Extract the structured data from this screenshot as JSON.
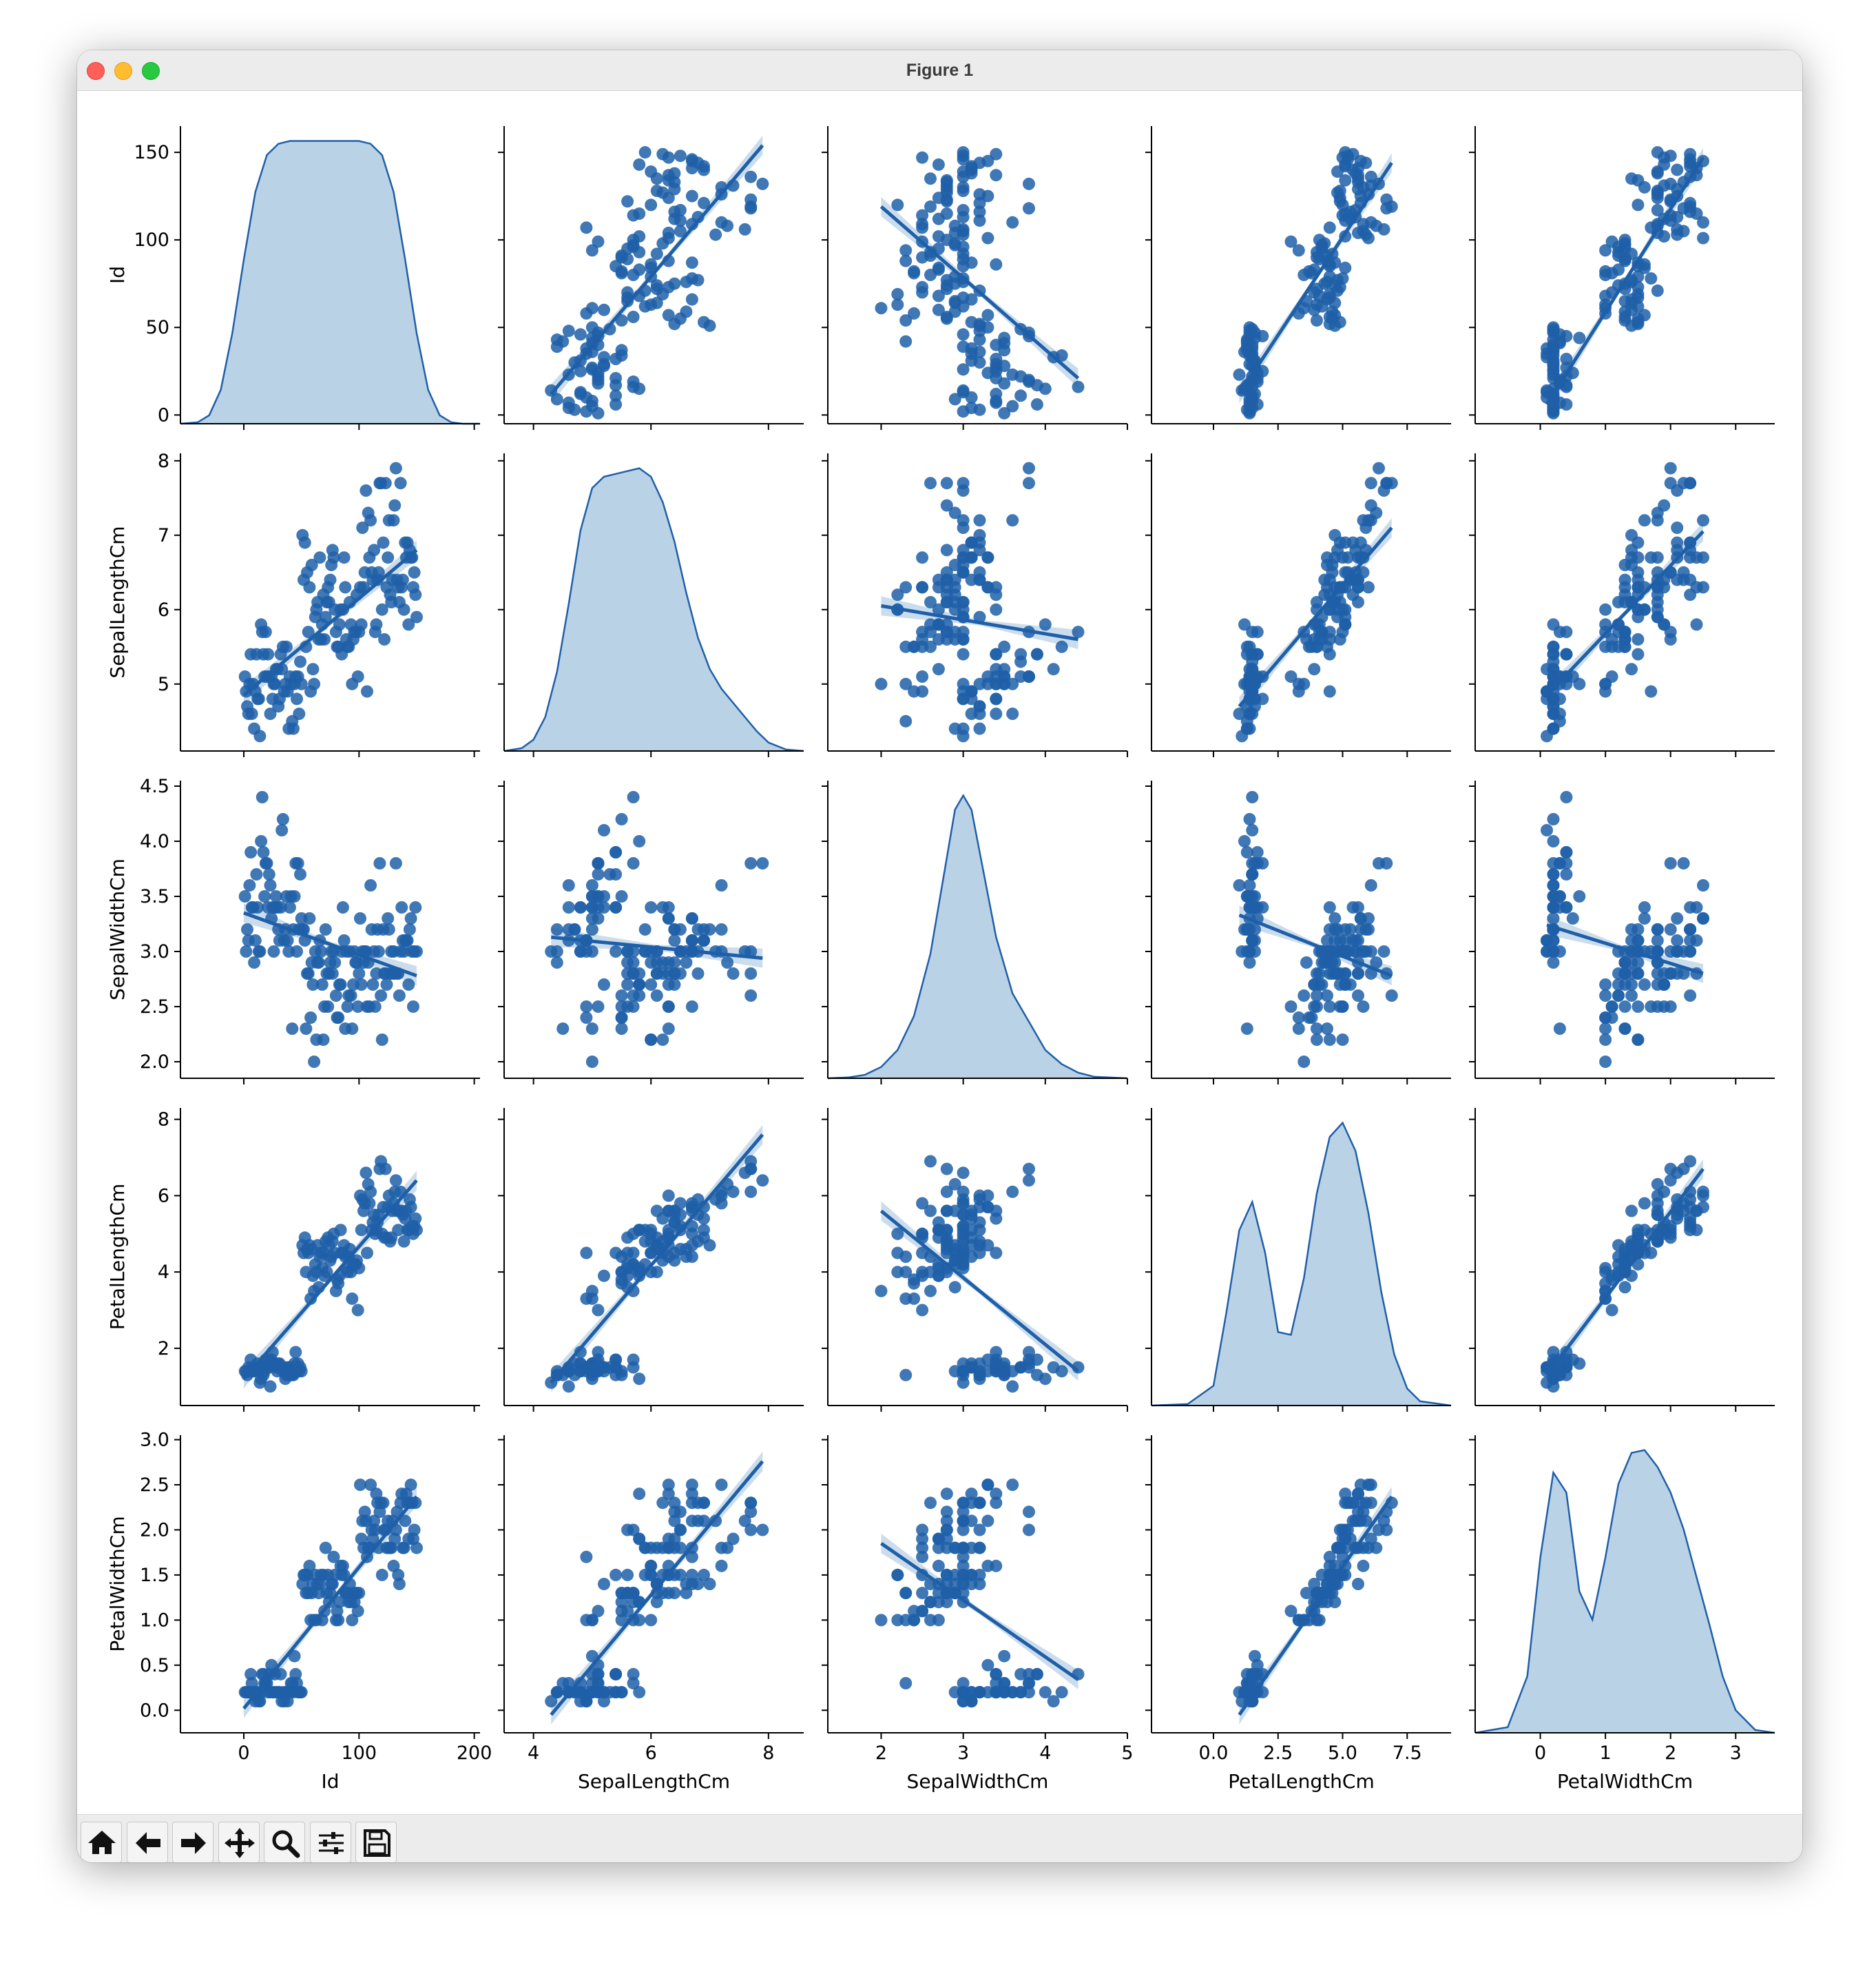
{
  "window": {
    "title": "Figure 1"
  },
  "toolbar": {
    "buttons": [
      {
        "name": "home-icon"
      },
      {
        "name": "back-arrow-icon"
      },
      {
        "name": "forward-arrow-icon"
      },
      {
        "name": "pan-icon"
      },
      {
        "name": "zoom-icon"
      },
      {
        "name": "configure-subplots-icon"
      },
      {
        "name": "save-icon"
      }
    ]
  },
  "chart_data": {
    "type": "scatter",
    "kind": "pairplot with regression lines and KDE diagonal",
    "color": "#1f5fa8",
    "fill_color": "#b9d2e6",
    "variables": [
      "Id",
      "SepalLengthCm",
      "SepalWidthCm",
      "PetalLengthCm",
      "PetalWidthCm"
    ],
    "axes": [
      {
        "name": "Id",
        "lim": [
          -55,
          205
        ],
        "ticks": [
          0,
          100,
          200
        ],
        "tick_labels": [
          "0",
          "100",
          "200"
        ],
        "ylim": [
          -5,
          165
        ],
        "yticks": [
          0,
          50,
          100,
          150
        ],
        "ytick_labels": [
          "0",
          "50",
          "100",
          "150"
        ]
      },
      {
        "name": "SepalLengthCm",
        "lim": [
          3.5,
          8.6
        ],
        "ticks": [
          4,
          6,
          8
        ],
        "tick_labels": [
          "4",
          "6",
          "8"
        ],
        "ylim": [
          4.1,
          8.1
        ],
        "yticks": [
          5,
          6,
          7,
          8
        ],
        "ytick_labels": [
          "5",
          "6",
          "7",
          "8"
        ]
      },
      {
        "name": "SepalWidthCm",
        "lim": [
          1.35,
          5.0
        ],
        "ticks": [
          2,
          3,
          4,
          5
        ],
        "tick_labels": [
          "2",
          "3",
          "4",
          "5"
        ],
        "ylim": [
          1.85,
          4.55
        ],
        "yticks": [
          2.0,
          2.5,
          3.0,
          3.5,
          4.0,
          4.5
        ],
        "ytick_labels": [
          "2.0",
          "2.5",
          "3.0",
          "3.5",
          "4.0",
          "4.5"
        ]
      },
      {
        "name": "PetalLengthCm",
        "lim": [
          -2.4,
          9.2
        ],
        "ticks": [
          0,
          2.5,
          5,
          7.5
        ],
        "tick_labels": [
          "0.0",
          "2.5",
          "5.0",
          "7.5"
        ],
        "ylim": [
          0.5,
          8.3
        ],
        "yticks": [
          2,
          4,
          6,
          8
        ],
        "ytick_labels": [
          "2",
          "4",
          "6",
          "8"
        ]
      },
      {
        "name": "PetalWidthCm",
        "lim": [
          -1.0,
          3.6
        ],
        "ticks": [
          0,
          1,
          2,
          3
        ],
        "tick_labels": [
          "0",
          "1",
          "2",
          "3"
        ],
        "ylim": [
          -0.25,
          3.05
        ],
        "yticks": [
          0.0,
          0.5,
          1.0,
          1.5,
          2.0,
          2.5,
          3.0
        ],
        "ytick_labels": [
          "0.0",
          "0.5",
          "1.0",
          "1.5",
          "2.0",
          "2.5",
          "3.0"
        ]
      }
    ],
    "diagonal_kde": [
      {
        "x": [
          -55,
          -40,
          -30,
          -20,
          -10,
          0,
          10,
          20,
          30,
          40,
          60,
          80,
          100,
          110,
          120,
          130,
          140,
          150,
          160,
          170,
          180,
          190,
          205
        ],
        "density": [
          0,
          0.005,
          0.03,
          0.12,
          0.32,
          0.58,
          0.82,
          0.95,
          0.99,
          1.0,
          1.0,
          1.0,
          1.0,
          0.99,
          0.95,
          0.82,
          0.58,
          0.32,
          0.12,
          0.03,
          0.005,
          0,
          0
        ]
      },
      {
        "x": [
          3.5,
          3.8,
          4.0,
          4.2,
          4.4,
          4.6,
          4.8,
          5.0,
          5.2,
          5.4,
          5.6,
          5.8,
          6.0,
          6.2,
          6.4,
          6.6,
          6.8,
          7.0,
          7.2,
          7.4,
          7.6,
          7.8,
          8.0,
          8.3,
          8.6
        ],
        "density": [
          0,
          0.01,
          0.04,
          0.12,
          0.28,
          0.52,
          0.78,
          0.93,
          0.97,
          0.98,
          0.99,
          1.0,
          0.97,
          0.88,
          0.74,
          0.56,
          0.4,
          0.29,
          0.22,
          0.17,
          0.12,
          0.07,
          0.03,
          0.005,
          0
        ]
      },
      {
        "x": [
          1.35,
          1.6,
          1.8,
          2.0,
          2.2,
          2.4,
          2.6,
          2.8,
          2.9,
          3.0,
          3.1,
          3.2,
          3.4,
          3.6,
          3.8,
          4.0,
          4.2,
          4.4,
          4.6,
          5.0
        ],
        "density": [
          0,
          0.003,
          0.012,
          0.04,
          0.1,
          0.22,
          0.44,
          0.78,
          0.95,
          1.0,
          0.95,
          0.8,
          0.5,
          0.3,
          0.2,
          0.1,
          0.05,
          0.02,
          0.005,
          0
        ]
      },
      {
        "x": [
          -2.4,
          -1.0,
          0.0,
          0.5,
          1.0,
          1.5,
          2.0,
          2.5,
          3.0,
          3.5,
          4.0,
          4.5,
          5.0,
          5.5,
          6.0,
          6.5,
          7.0,
          7.5,
          8.0,
          9.2
        ],
        "density": [
          0,
          0.005,
          0.07,
          0.33,
          0.62,
          0.72,
          0.54,
          0.26,
          0.25,
          0.45,
          0.75,
          0.95,
          1.0,
          0.9,
          0.68,
          0.4,
          0.18,
          0.06,
          0.015,
          0
        ]
      },
      {
        "x": [
          -1.0,
          -0.5,
          -0.2,
          0.0,
          0.2,
          0.4,
          0.6,
          0.8,
          1.0,
          1.2,
          1.4,
          1.6,
          1.8,
          2.0,
          2.2,
          2.4,
          2.6,
          2.8,
          3.0,
          3.3,
          3.6
        ],
        "density": [
          0,
          0.02,
          0.2,
          0.62,
          0.92,
          0.85,
          0.5,
          0.4,
          0.62,
          0.88,
          0.99,
          1.0,
          0.94,
          0.85,
          0.72,
          0.55,
          0.38,
          0.2,
          0.08,
          0.01,
          0
        ]
      }
    ],
    "regression": [
      [
        null,
        {
          "x0": 4.3,
          "x1": 7.9,
          "y0": 12,
          "y1": 154
        },
        {
          "x0": 2.0,
          "x1": 4.4,
          "y0": 119,
          "y1": 21
        },
        {
          "x0": 1.0,
          "x1": 6.9,
          "y0": 12,
          "y1": 144
        },
        {
          "x0": 0.1,
          "x1": 2.5,
          "y0": 6,
          "y1": 147
        }
      ],
      [
        {
          "x0": 0,
          "x1": 150,
          "y0": 4.85,
          "y1": 6.8
        },
        null,
        {
          "x0": 2.0,
          "x1": 4.4,
          "y0": 6.05,
          "y1": 5.6
        },
        {
          "x0": 1.0,
          "x1": 6.9,
          "y0": 4.7,
          "y1": 7.1
        },
        {
          "x0": 0.1,
          "x1": 2.5,
          "y0": 4.85,
          "y1": 7.05
        }
      ],
      [
        {
          "x0": 0,
          "x1": 150,
          "y0": 3.35,
          "y1": 2.78
        },
        {
          "x0": 4.3,
          "x1": 7.9,
          "y0": 3.13,
          "y1": 2.94
        },
        null,
        {
          "x0": 1.0,
          "x1": 6.9,
          "y0": 3.33,
          "y1": 2.78
        },
        {
          "x0": 0.1,
          "x1": 2.5,
          "y0": 3.24,
          "y1": 2.8
        }
      ],
      [
        {
          "x0": 0,
          "x1": 150,
          "y0": 1.2,
          "y1": 6.4
        },
        {
          "x0": 4.3,
          "x1": 7.9,
          "y0": 1.1,
          "y1": 7.6
        },
        {
          "x0": 2.0,
          "x1": 4.4,
          "y0": 5.6,
          "y1": 1.4
        },
        null,
        {
          "x0": 0.1,
          "x1": 2.5,
          "y0": 1.3,
          "y1": 6.7
        }
      ],
      [
        {
          "x0": 0,
          "x1": 150,
          "y0": 0.02,
          "y1": 2.37
        },
        {
          "x0": 4.3,
          "x1": 7.9,
          "y0": -0.05,
          "y1": 2.76
        },
        {
          "x0": 2.0,
          "x1": 4.4,
          "y0": 1.85,
          "y1": 0.34
        },
        {
          "x0": 1.0,
          "x1": 6.9,
          "y0": -0.05,
          "y1": 2.37
        },
        null
      ]
    ],
    "samples": {
      "Id": [
        1,
        2,
        3,
        4,
        5,
        6,
        7,
        8,
        9,
        10,
        11,
        12,
        13,
        14,
        15,
        16,
        17,
        18,
        19,
        20,
        21,
        22,
        23,
        24,
        25,
        26,
        27,
        28,
        29,
        30,
        31,
        32,
        33,
        34,
        35,
        36,
        37,
        38,
        39,
        40,
        41,
        42,
        43,
        44,
        45,
        46,
        47,
        48,
        49,
        50,
        51,
        52,
        53,
        54,
        55,
        56,
        57,
        58,
        59,
        60,
        61,
        62,
        63,
        64,
        65,
        66,
        67,
        68,
        69,
        70,
        71,
        72,
        73,
        74,
        75,
        76,
        77,
        78,
        79,
        80,
        81,
        82,
        83,
        84,
        85,
        86,
        87,
        88,
        89,
        90,
        91,
        92,
        93,
        94,
        95,
        96,
        97,
        98,
        99,
        100,
        101,
        102,
        103,
        104,
        105,
        106,
        107,
        108,
        109,
        110,
        111,
        112,
        113,
        114,
        115,
        116,
        117,
        118,
        119,
        120,
        121,
        122,
        123,
        124,
        125,
        126,
        127,
        128,
        129,
        130,
        131,
        132,
        133,
        134,
        135,
        136,
        137,
        138,
        139,
        140,
        141,
        142,
        143,
        144,
        145,
        146,
        147,
        148,
        149,
        150
      ],
      "SepalLengthCm": [
        5.1,
        4.9,
        4.7,
        4.6,
        5.0,
        5.4,
        4.6,
        5.0,
        4.4,
        4.9,
        5.4,
        4.8,
        4.8,
        4.3,
        5.8,
        5.7,
        5.4,
        5.1,
        5.7,
        5.1,
        5.4,
        5.1,
        4.6,
        5.1,
        4.8,
        5.0,
        5.0,
        5.2,
        5.2,
        4.7,
        4.8,
        5.4,
        5.2,
        5.5,
        4.9,
        5.0,
        5.5,
        4.9,
        4.4,
        5.1,
        5.0,
        4.5,
        4.4,
        5.0,
        5.1,
        4.8,
        5.1,
        4.6,
        5.3,
        5.0,
        7.0,
        6.4,
        6.9,
        5.5,
        6.5,
        5.7,
        6.3,
        4.9,
        6.6,
        5.2,
        5.0,
        5.9,
        6.0,
        6.1,
        5.6,
        6.7,
        5.6,
        5.8,
        6.2,
        5.6,
        5.9,
        6.1,
        6.3,
        6.1,
        6.4,
        6.6,
        6.8,
        6.7,
        6.0,
        5.7,
        5.5,
        5.5,
        5.8,
        6.0,
        5.4,
        6.0,
        6.7,
        6.3,
        5.6,
        5.5,
        5.5,
        6.1,
        5.8,
        5.0,
        5.6,
        5.7,
        5.7,
        6.2,
        5.1,
        5.7,
        6.3,
        5.8,
        7.1,
        6.3,
        6.5,
        7.6,
        4.9,
        7.3,
        6.7,
        7.2,
        6.5,
        6.4,
        6.8,
        5.7,
        5.8,
        6.4,
        6.5,
        7.7,
        7.7,
        6.0,
        6.9,
        5.6,
        7.7,
        6.3,
        6.7,
        7.2,
        6.2,
        6.1,
        6.4,
        7.2,
        7.4,
        7.9,
        6.4,
        6.3,
        6.1,
        7.7,
        6.3,
        6.4,
        6.0,
        6.9,
        6.7,
        6.9,
        5.8,
        6.8,
        6.7,
        6.7,
        6.3,
        6.5,
        6.2,
        5.9
      ],
      "SepalWidthCm": [
        3.5,
        3.0,
        3.2,
        3.1,
        3.6,
        3.9,
        3.4,
        3.4,
        2.9,
        3.1,
        3.7,
        3.4,
        3.0,
        3.0,
        4.0,
        4.4,
        3.9,
        3.5,
        3.8,
        3.8,
        3.4,
        3.7,
        3.6,
        3.3,
        3.4,
        3.0,
        3.4,
        3.5,
        3.4,
        3.2,
        3.1,
        3.4,
        4.1,
        4.2,
        3.1,
        3.2,
        3.5,
        3.1,
        3.0,
        3.4,
        3.5,
        2.3,
        3.2,
        3.5,
        3.8,
        3.0,
        3.8,
        3.2,
        3.7,
        3.3,
        3.2,
        3.2,
        3.1,
        2.3,
        2.8,
        2.8,
        3.3,
        2.4,
        2.9,
        2.7,
        2.0,
        3.0,
        2.2,
        2.9,
        2.9,
        3.1,
        3.0,
        2.7,
        2.2,
        2.5,
        3.2,
        2.8,
        2.5,
        2.8,
        2.9,
        3.0,
        2.8,
        3.0,
        2.9,
        2.6,
        2.4,
        2.4,
        2.7,
        2.7,
        3.0,
        3.4,
        3.1,
        2.3,
        3.0,
        2.5,
        2.6,
        3.0,
        2.6,
        2.3,
        2.7,
        3.0,
        2.9,
        2.9,
        2.5,
        2.8,
        3.3,
        2.7,
        3.0,
        2.9,
        3.0,
        3.0,
        2.5,
        2.9,
        2.5,
        3.6,
        3.2,
        2.7,
        3.0,
        2.5,
        2.8,
        3.2,
        3.0,
        3.8,
        2.6,
        2.2,
        3.2,
        2.8,
        2.8,
        2.7,
        3.3,
        3.2,
        2.8,
        3.0,
        2.8,
        3.0,
        2.8,
        3.8,
        2.8,
        2.8,
        2.6,
        3.0,
        3.4,
        3.1,
        3.0,
        3.1,
        3.1,
        3.1,
        2.7,
        3.2,
        3.3,
        3.0,
        2.5,
        3.0,
        3.4,
        3.0
      ],
      "PetalLengthCm": [
        1.4,
        1.4,
        1.3,
        1.5,
        1.4,
        1.7,
        1.4,
        1.5,
        1.4,
        1.5,
        1.5,
        1.6,
        1.4,
        1.1,
        1.2,
        1.5,
        1.3,
        1.4,
        1.7,
        1.5,
        1.7,
        1.5,
        1.0,
        1.7,
        1.9,
        1.6,
        1.6,
        1.5,
        1.4,
        1.6,
        1.6,
        1.5,
        1.5,
        1.4,
        1.5,
        1.2,
        1.3,
        1.5,
        1.3,
        1.5,
        1.3,
        1.3,
        1.3,
        1.6,
        1.9,
        1.4,
        1.6,
        1.4,
        1.5,
        1.4,
        4.7,
        4.5,
        4.9,
        4.0,
        4.6,
        4.5,
        4.7,
        3.3,
        4.6,
        3.9,
        3.5,
        4.2,
        4.0,
        4.7,
        3.6,
        4.4,
        4.5,
        4.1,
        4.5,
        3.9,
        4.8,
        4.0,
        4.9,
        4.7,
        4.3,
        4.4,
        4.8,
        5.0,
        4.5,
        3.5,
        3.8,
        3.7,
        3.9,
        5.1,
        4.5,
        4.5,
        4.7,
        4.4,
        4.1,
        4.0,
        4.4,
        4.6,
        4.0,
        3.3,
        4.2,
        4.2,
        4.2,
        4.3,
        3.0,
        4.1,
        6.0,
        5.1,
        5.9,
        5.6,
        5.8,
        6.6,
        4.5,
        6.3,
        5.8,
        6.1,
        5.1,
        5.3,
        5.5,
        5.0,
        5.1,
        5.3,
        5.5,
        6.7,
        6.9,
        5.0,
        5.7,
        4.9,
        6.7,
        4.9,
        5.7,
        6.0,
        4.8,
        4.9,
        5.6,
        5.8,
        6.1,
        6.4,
        5.6,
        5.1,
        5.6,
        6.1,
        5.6,
        5.5,
        4.8,
        5.4,
        5.6,
        5.1,
        5.1,
        5.9,
        5.7,
        5.2,
        5.0,
        5.2,
        5.4,
        5.1
      ],
      "PetalWidthCm": [
        0.2,
        0.2,
        0.2,
        0.2,
        0.2,
        0.4,
        0.3,
        0.2,
        0.2,
        0.1,
        0.2,
        0.2,
        0.1,
        0.1,
        0.2,
        0.4,
        0.4,
        0.3,
        0.3,
        0.3,
        0.2,
        0.4,
        0.2,
        0.5,
        0.2,
        0.2,
        0.4,
        0.2,
        0.2,
        0.2,
        0.2,
        0.4,
        0.1,
        0.2,
        0.1,
        0.2,
        0.2,
        0.1,
        0.2,
        0.2,
        0.3,
        0.3,
        0.2,
        0.6,
        0.4,
        0.3,
        0.2,
        0.2,
        0.2,
        0.2,
        1.4,
        1.5,
        1.5,
        1.3,
        1.5,
        1.3,
        1.6,
        1.0,
        1.3,
        1.4,
        1.0,
        1.5,
        1.0,
        1.4,
        1.3,
        1.4,
        1.5,
        1.0,
        1.5,
        1.1,
        1.8,
        1.3,
        1.5,
        1.2,
        1.3,
        1.4,
        1.4,
        1.7,
        1.5,
        1.0,
        1.1,
        1.0,
        1.2,
        1.6,
        1.5,
        1.6,
        1.5,
        1.3,
        1.3,
        1.3,
        1.2,
        1.4,
        1.2,
        1.0,
        1.3,
        1.2,
        1.3,
        1.3,
        1.1,
        1.3,
        2.5,
        1.9,
        2.1,
        1.8,
        2.2,
        2.1,
        1.7,
        1.8,
        1.8,
        2.5,
        2.0,
        1.9,
        2.1,
        2.0,
        2.4,
        2.3,
        1.8,
        2.2,
        2.3,
        1.5,
        2.3,
        2.0,
        2.0,
        1.8,
        2.1,
        1.8,
        1.8,
        1.8,
        2.1,
        1.6,
        1.9,
        2.0,
        2.2,
        1.5,
        1.4,
        2.3,
        2.4,
        1.8,
        1.8,
        2.1,
        2.4,
        2.3,
        1.9,
        2.3,
        2.5,
        2.3,
        1.9,
        2.0,
        2.3,
        1.8
      ]
    }
  }
}
